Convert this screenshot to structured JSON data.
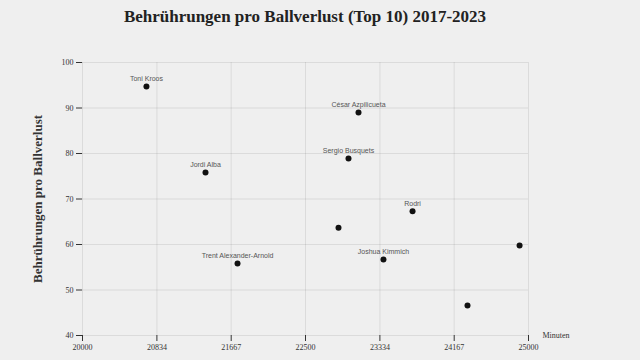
{
  "chart_data": {
    "type": "scatter",
    "title": "Behrührungen pro Ballverlust (Top 10) 2017-2023",
    "xlabel": "Minuten",
    "ylabel": "Behrührungen pro Ballverlust",
    "x": [
      20717,
      23094,
      22982,
      21379,
      23700,
      22870,
      21738,
      23374,
      24900,
      24316
    ],
    "values": [
      94.7,
      89.0,
      78.9,
      75.8,
      67.3,
      63.7,
      55.8,
      56.7,
      59.8,
      46.6
    ],
    "labels": [
      "Toni Kroos",
      "César Azpilicueta",
      "Sergio Busquets",
      "Jordi Alba",
      "Rodri",
      null,
      "Trent Alexander-Arnold",
      "Joshua Kimmich",
      null,
      null
    ],
    "color": "#111111",
    "xlim": [
      20000,
      25000
    ],
    "xticks": [
      20000,
      20834,
      21667,
      22500,
      23334,
      24167,
      25000
    ],
    "ylim": [
      40,
      100
    ],
    "yticks": [
      40,
      50,
      60,
      70,
      80,
      90,
      100
    ],
    "grid": true
  }
}
